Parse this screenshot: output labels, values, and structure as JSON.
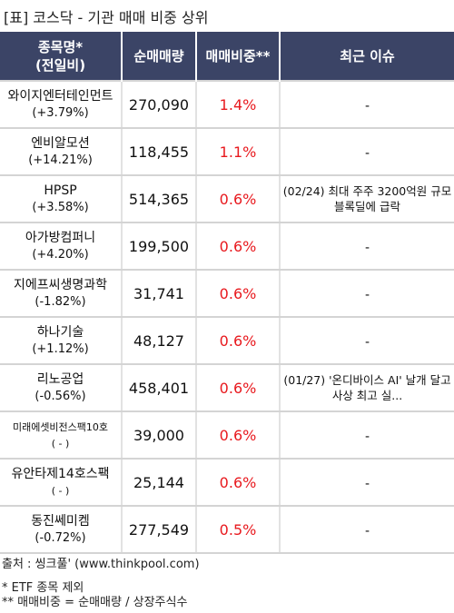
{
  "title": "[표] 코스닥 - 기관 매매 비중 상위",
  "header": {
    "col1": "종목명*\n(전일비)",
    "col2": "순매매량",
    "col3": "매매비중**",
    "col4": "최근 이슈"
  },
  "rows": [
    {
      "name": "와이지엔터테인먼트",
      "change": "(+3.79%)",
      "volume": "270,090",
      "ratio": "1.4%",
      "issue": "-"
    },
    {
      "name": "엔비알모션",
      "change": "(+14.21%)",
      "volume": "118,455",
      "ratio": "1.1%",
      "issue": "-"
    },
    {
      "name": "HPSP",
      "change": "(+3.58%)",
      "volume": "514,365",
      "ratio": "0.6%",
      "issue": "(02/24) 최대 주주 3200억원 규모 블록딜에 급락"
    },
    {
      "name": "아가방컴퍼니",
      "change": "(+4.20%)",
      "volume": "199,500",
      "ratio": "0.6%",
      "issue": "-"
    },
    {
      "name": "지에프씨생명과학",
      "change": "(-1.82%)",
      "volume": "31,741",
      "ratio": "0.6%",
      "issue": "-"
    },
    {
      "name": "하나기술",
      "change": "(+1.12%)",
      "volume": "48,127",
      "ratio": "0.6%",
      "issue": "-"
    },
    {
      "name": "리노공업",
      "change": "(-0.56%)",
      "volume": "458,401",
      "ratio": "0.6%",
      "issue": "(01/27) '온디바이스 AI' 날개 달고 사상 최고 실..."
    },
    {
      "name": "미래에셋비전스팩10호",
      "change": "( - )",
      "volume": "39,000",
      "ratio": "0.6%",
      "issue": "-"
    },
    {
      "name": "유안타제14호스팩",
      "change": "( - )",
      "volume": "25,144",
      "ratio": "0.6%",
      "issue": "-"
    },
    {
      "name": "동진쎄미켐",
      "change": "(-0.72%)",
      "volume": "277,549",
      "ratio": "0.5%",
      "issue": "-"
    }
  ],
  "footer": {
    "source": "출처 : 씽크풀' (www.thinkpool.com)",
    "note1": "* ETF 종목 제외",
    "note2": "** 매매비중 = 순매매량 / 상장주식수"
  },
  "colors": {
    "header_bg": "#3b4466",
    "ratio_text": "#e8191e"
  }
}
